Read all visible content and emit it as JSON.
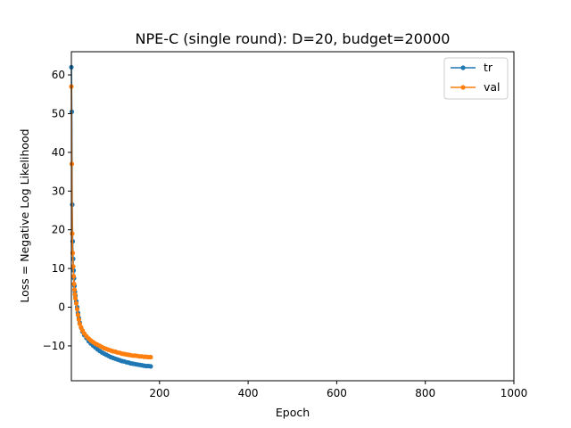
{
  "chart_data": {
    "type": "line",
    "title": "NPE-C (single round): D=20, budget=20000",
    "xlabel": "Epoch",
    "ylabel": "Loss = Negative Log Likelihood",
    "xlim": [
      1,
      1000
    ],
    "ylim": [
      -19,
      66
    ],
    "xticks": [
      200,
      400,
      600,
      800,
      1000
    ],
    "yticks": [
      -10,
      0,
      10,
      20,
      30,
      40,
      50,
      60
    ],
    "grid": false,
    "legend_position": "top-right",
    "series": [
      {
        "name": "tr",
        "color": "#1f77b4",
        "x": [
          1,
          2,
          3,
          4,
          5,
          6,
          7,
          8,
          9,
          10,
          12,
          14,
          16,
          18,
          20,
          23,
          26,
          30,
          35,
          40,
          45,
          50,
          55,
          60,
          65,
          70,
          75,
          80,
          85,
          90,
          95,
          100,
          105,
          110,
          115,
          120,
          125,
          130,
          135,
          140,
          145,
          150,
          155,
          160,
          165,
          170,
          175,
          180
        ],
        "values": [
          62,
          50.5,
          26.5,
          17,
          12.5,
          9.5,
          7.5,
          5.5,
          4,
          3,
          1.5,
          0,
          -1.5,
          -2.8,
          -4,
          -5.3,
          -6.3,
          -7.2,
          -8,
          -8.8,
          -9.4,
          -9.9,
          -10.4,
          -10.9,
          -11.3,
          -11.7,
          -12.0,
          -12.3,
          -12.6,
          -12.9,
          -13.1,
          -13.3,
          -13.5,
          -13.7,
          -13.9,
          -14.0,
          -14.2,
          -14.3,
          -14.5,
          -14.6,
          -14.7,
          -14.8,
          -14.9,
          -15.0,
          -15.1,
          -15.2,
          -15.2,
          -15.3
        ]
      },
      {
        "name": "val",
        "color": "#ff7f0e",
        "x": [
          1,
          2,
          3,
          4,
          5,
          6,
          7,
          8,
          9,
          10,
          12,
          14,
          16,
          18,
          20,
          23,
          26,
          30,
          35,
          40,
          45,
          50,
          55,
          60,
          65,
          70,
          75,
          80,
          85,
          90,
          95,
          100,
          105,
          110,
          115,
          120,
          125,
          130,
          135,
          140,
          145,
          150,
          155,
          160,
          165,
          170,
          175,
          180
        ],
        "values": [
          57,
          37,
          19,
          14,
          10.5,
          8,
          6,
          4.5,
          3.3,
          2.3,
          1,
          -0.5,
          -2,
          -3.2,
          -4.3,
          -5.2,
          -6,
          -6.8,
          -7.5,
          -8.1,
          -8.6,
          -9,
          -9.4,
          -9.7,
          -10,
          -10.3,
          -10.6,
          -10.8,
          -11,
          -11.2,
          -11.4,
          -11.5,
          -11.7,
          -11.8,
          -12,
          -12.1,
          -12.2,
          -12.3,
          -12.4,
          -12.5,
          -12.5,
          -12.6,
          -12.7,
          -12.7,
          -12.8,
          -12.8,
          -12.9,
          -12.9
        ]
      }
    ]
  }
}
